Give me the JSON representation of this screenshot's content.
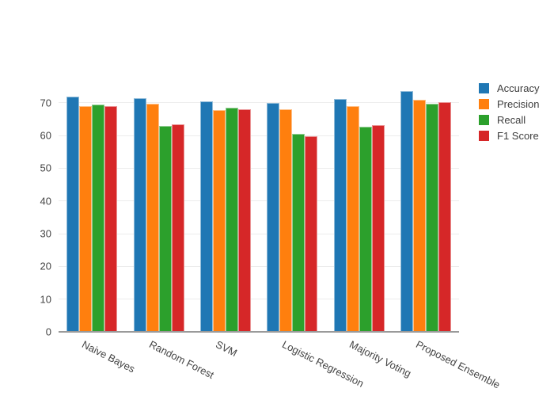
{
  "chart_data": {
    "type": "bar",
    "title": "",
    "xlabel": "",
    "ylabel": "",
    "categories": [
      "Naive Bayes",
      "Random Forest",
      "SVM",
      "Logistic Regression",
      "Majority Voting",
      "Proposed Ensemble"
    ],
    "series": [
      {
        "name": "Accuracy",
        "color": "#1f77b4",
        "edge_color": "#8fbbd9",
        "values": [
          71.9,
          71.5,
          70.4,
          69.9,
          71.2,
          73.6
        ]
      },
      {
        "name": "Precision",
        "color": "#ff7f0e",
        "edge_color": "#ffbf86",
        "values": [
          69.1,
          69.8,
          67.8,
          68.1,
          69.0,
          71.0
        ]
      },
      {
        "name": "Recall",
        "color": "#2ca02c",
        "edge_color": "#95cf95",
        "values": [
          69.5,
          63.0,
          68.4,
          60.4,
          62.6,
          69.6
        ]
      },
      {
        "name": "F1 Score",
        "color": "#d62728",
        "edge_color": "#ea9293",
        "values": [
          69.1,
          63.5,
          68.0,
          59.9,
          63.1,
          70.2
        ]
      }
    ],
    "ylim": [
      0,
      76
    ],
    "yticks": [
      0,
      10,
      20,
      30,
      40,
      50,
      60,
      70
    ],
    "grid": true,
    "legend_position": "right-top",
    "background_color": "#ffffff",
    "gridline_color": "#ececec",
    "axis_line_color": "#9a9a9a",
    "tick_label_color": "#444444",
    "x_tick_angle_deg": 27
  }
}
